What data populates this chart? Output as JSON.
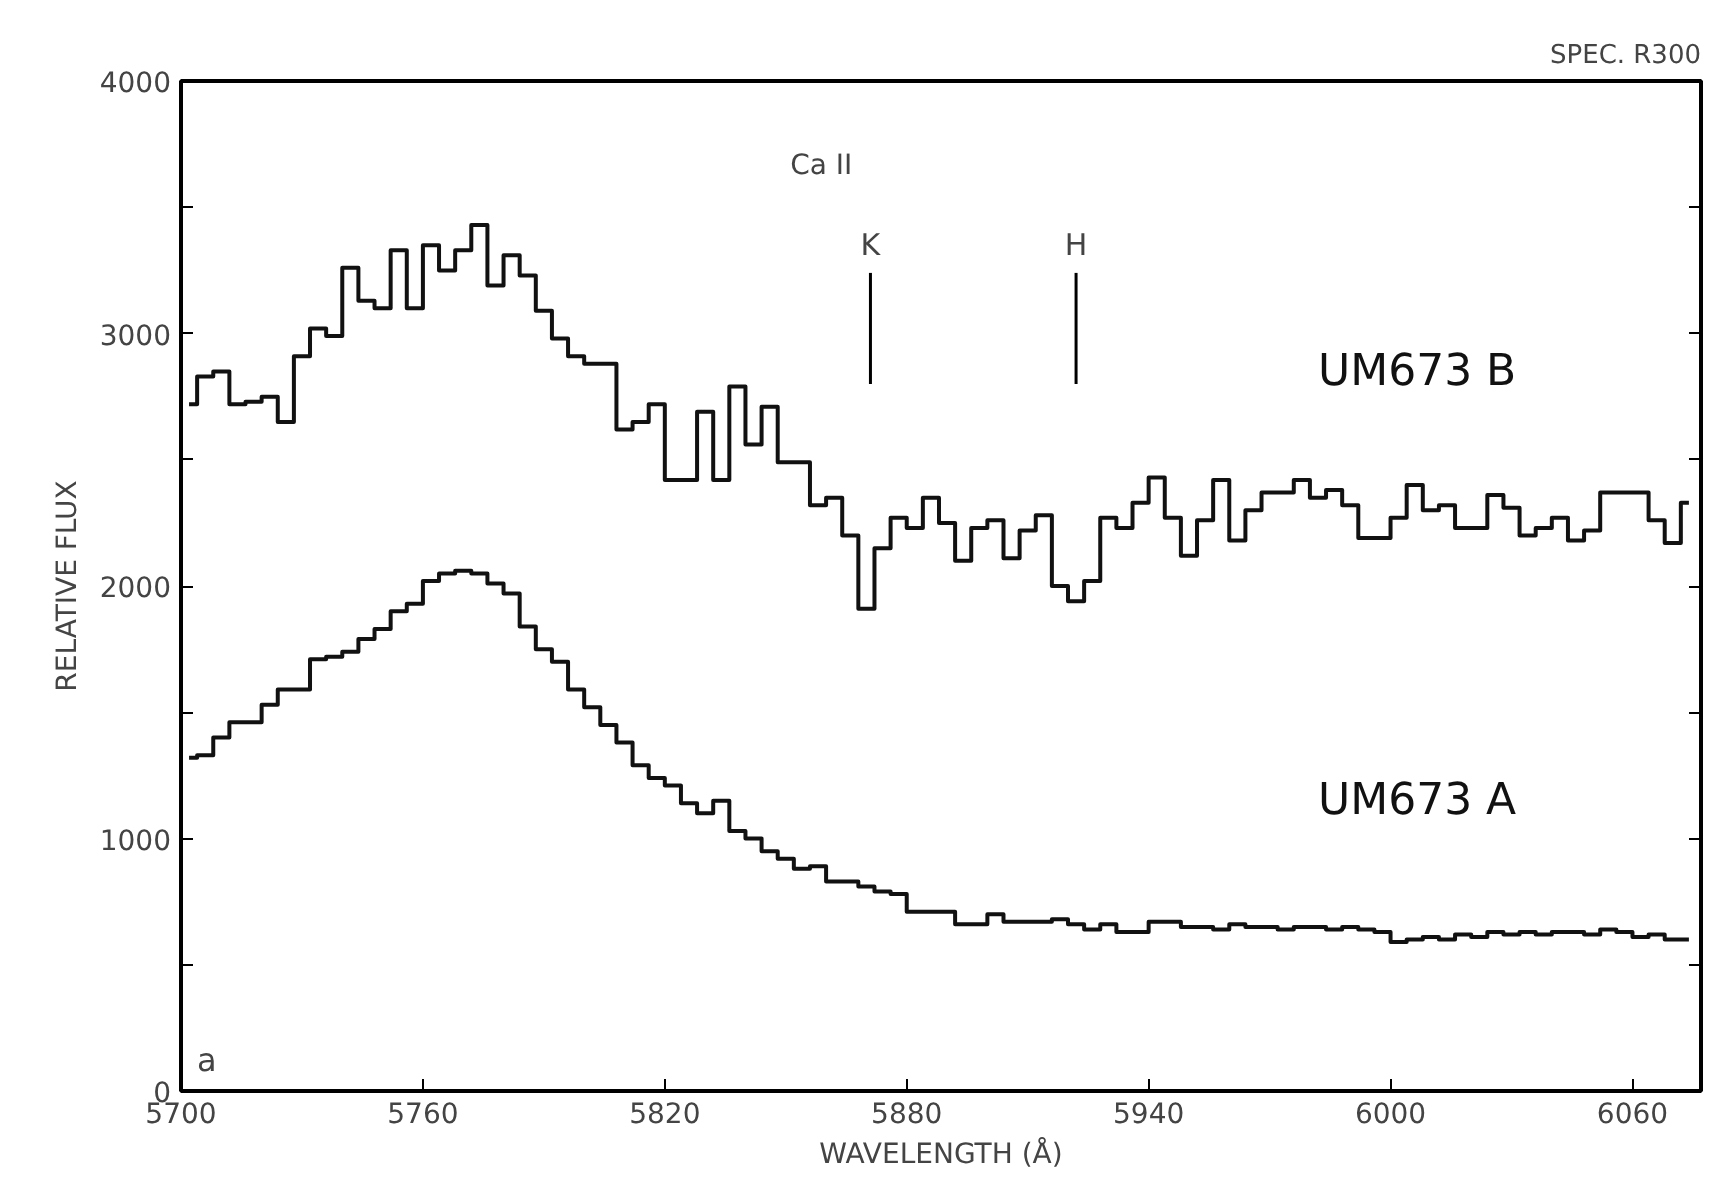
{
  "chart_data": {
    "type": "step",
    "title": "SPEC. R300",
    "xlabel": "WAVELENGTH (Å)",
    "ylabel": "RELATIVE FLUX",
    "x": [
      5702,
      5706,
      5710,
      5714,
      5718,
      5722,
      5726,
      5730,
      5734,
      5738,
      5742,
      5746,
      5750,
      5754,
      5758,
      5762,
      5766,
      5770,
      5774,
      5778,
      5782,
      5786,
      5790,
      5794,
      5798,
      5802,
      5806,
      5810,
      5814,
      5818,
      5822,
      5826,
      5830,
      5834,
      5838,
      5842,
      5846,
      5850,
      5854,
      5858,
      5862,
      5866,
      5870,
      5874,
      5878,
      5882,
      5886,
      5890,
      5894,
      5898,
      5902,
      5906,
      5910,
      5914,
      5918,
      5922,
      5926,
      5930,
      5934,
      5938,
      5942,
      5946,
      5950,
      5954,
      5958,
      5962,
      5966,
      5970,
      5974,
      5978,
      5982,
      5986,
      5990,
      5994,
      5998,
      6002,
      6006,
      6010,
      6014,
      6018,
      6022,
      6026,
      6030,
      6034,
      6038,
      6042,
      6046,
      6050,
      6054,
      6058,
      6062,
      6066,
      6070,
      6074
    ],
    "series": [
      {
        "name": "UM673 B",
        "color": "#111111",
        "values": [
          2720,
          2830,
          2850,
          2720,
          2730,
          2750,
          2650,
          2910,
          3020,
          2990,
          3260,
          3130,
          3100,
          3330,
          3100,
          3350,
          3250,
          3330,
          3430,
          3190,
          3310,
          3230,
          3090,
          2980,
          2910,
          2880,
          2880,
          2620,
          2650,
          2720,
          2420,
          2420,
          2690,
          2420,
          2790,
          2560,
          2710,
          2490,
          2490,
          2320,
          2350,
          2200,
          1910,
          2150,
          2270,
          2230,
          2350,
          2250,
          2100,
          2230,
          2260,
          2110,
          2220,
          2280,
          2000,
          1940,
          2020,
          2270,
          2230,
          2330,
          2430,
          2270,
          2120,
          2260,
          2420,
          2180,
          2300,
          2370,
          2370,
          2420,
          2350,
          2380,
          2320,
          2190,
          2190,
          2270,
          2400,
          2300,
          2320,
          2230,
          2230,
          2360,
          2310,
          2200,
          2230,
          2270,
          2180,
          2220,
          2370,
          2370,
          2370,
          2260,
          2170,
          2330
        ]
      },
      {
        "name": "UM673 A",
        "color": "#111111",
        "values": [
          1320,
          1330,
          1400,
          1460,
          1460,
          1530,
          1590,
          1590,
          1710,
          1720,
          1740,
          1790,
          1830,
          1900,
          1930,
          2020,
          2050,
          2060,
          2050,
          2010,
          1970,
          1840,
          1750,
          1700,
          1590,
          1520,
          1450,
          1380,
          1290,
          1240,
          1210,
          1140,
          1100,
          1150,
          1030,
          1000,
          950,
          920,
          880,
          890,
          830,
          830,
          810,
          790,
          780,
          710,
          710,
          710,
          660,
          660,
          700,
          670,
          670,
          670,
          680,
          660,
          640,
          660,
          630,
          630,
          670,
          670,
          650,
          650,
          640,
          660,
          650,
          650,
          640,
          650,
          650,
          640,
          650,
          640,
          630,
          590,
          600,
          610,
          600,
          620,
          610,
          630,
          620,
          630,
          620,
          630,
          630,
          620,
          640,
          630,
          610,
          620,
          600,
          600
        ]
      }
    ],
    "xlim": [
      5700,
      6077
    ],
    "ylim": [
      0,
      4000
    ],
    "xticks": [
      5700,
      5760,
      5820,
      5880,
      5940,
      6000,
      6060
    ],
    "yticks": [
      0,
      {
        "value": 500,
        "label": null
      },
      1000,
      {
        "value": 1500,
        "label": null
      },
      2000,
      {
        "value": 2500,
        "label": null
      },
      3000,
      {
        "value": 3500,
        "label": null
      },
      4000
    ],
    "grid": false,
    "ref_lines": [
      {
        "axis": "x",
        "value": 5871,
        "label": "K"
      },
      {
        "axis": "x",
        "value": 5922,
        "label": "H"
      }
    ],
    "annotations": [
      "Ca II",
      "a"
    ]
  }
}
